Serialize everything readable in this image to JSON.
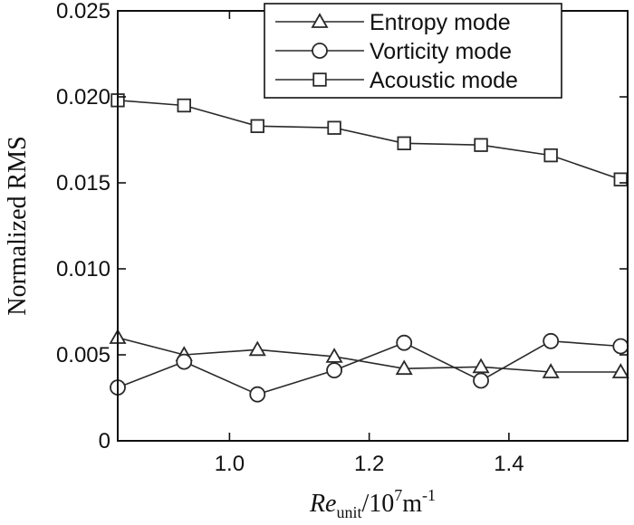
{
  "chart_data": {
    "type": "line",
    "xlabel": {
      "main": "Re",
      "sub": "unit",
      "unit_prefix": "/10",
      "unit_exp": "7",
      "unit_mid": "m",
      "unit_exp2": "-1"
    },
    "ylabel": "Normalized RMS",
    "xlim": [
      0.84,
      1.57
    ],
    "ylim": [
      0,
      0.025
    ],
    "xticks": [
      1.0,
      1.2,
      1.4
    ],
    "xtick_labels": [
      "1.0",
      "1.2",
      "1.4"
    ],
    "yticks": [
      0,
      0.005,
      0.01,
      0.015,
      0.02,
      0.025
    ],
    "ytick_labels": [
      "0",
      "0.005",
      "0.010",
      "0.015",
      "0.020",
      "0.025"
    ],
    "grid": false,
    "legend_position": "top-right",
    "series": [
      {
        "name": "Entropy mode",
        "marker": "triangle",
        "x": [
          0.84,
          0.935,
          1.04,
          1.15,
          1.25,
          1.36,
          1.46,
          1.56
        ],
        "y": [
          0.006,
          0.005,
          0.0053,
          0.0049,
          0.0042,
          0.0043,
          0.004,
          0.004
        ]
      },
      {
        "name": "Vorticity mode",
        "marker": "circle",
        "x": [
          0.84,
          0.935,
          1.04,
          1.15,
          1.25,
          1.36,
          1.46,
          1.56
        ],
        "y": [
          0.0031,
          0.0046,
          0.0027,
          0.0041,
          0.0057,
          0.0035,
          0.0058,
          0.0055
        ]
      },
      {
        "name": "Acoustic mode",
        "marker": "square",
        "x": [
          0.84,
          0.935,
          1.04,
          1.15,
          1.25,
          1.36,
          1.46,
          1.56
        ],
        "y": [
          0.0198,
          0.0195,
          0.0183,
          0.0182,
          0.0173,
          0.0172,
          0.0166,
          0.0152
        ]
      }
    ]
  },
  "colors": {
    "line": "#2a2a2a",
    "marker_fill": "#ffffff",
    "axis": "#111111"
  }
}
